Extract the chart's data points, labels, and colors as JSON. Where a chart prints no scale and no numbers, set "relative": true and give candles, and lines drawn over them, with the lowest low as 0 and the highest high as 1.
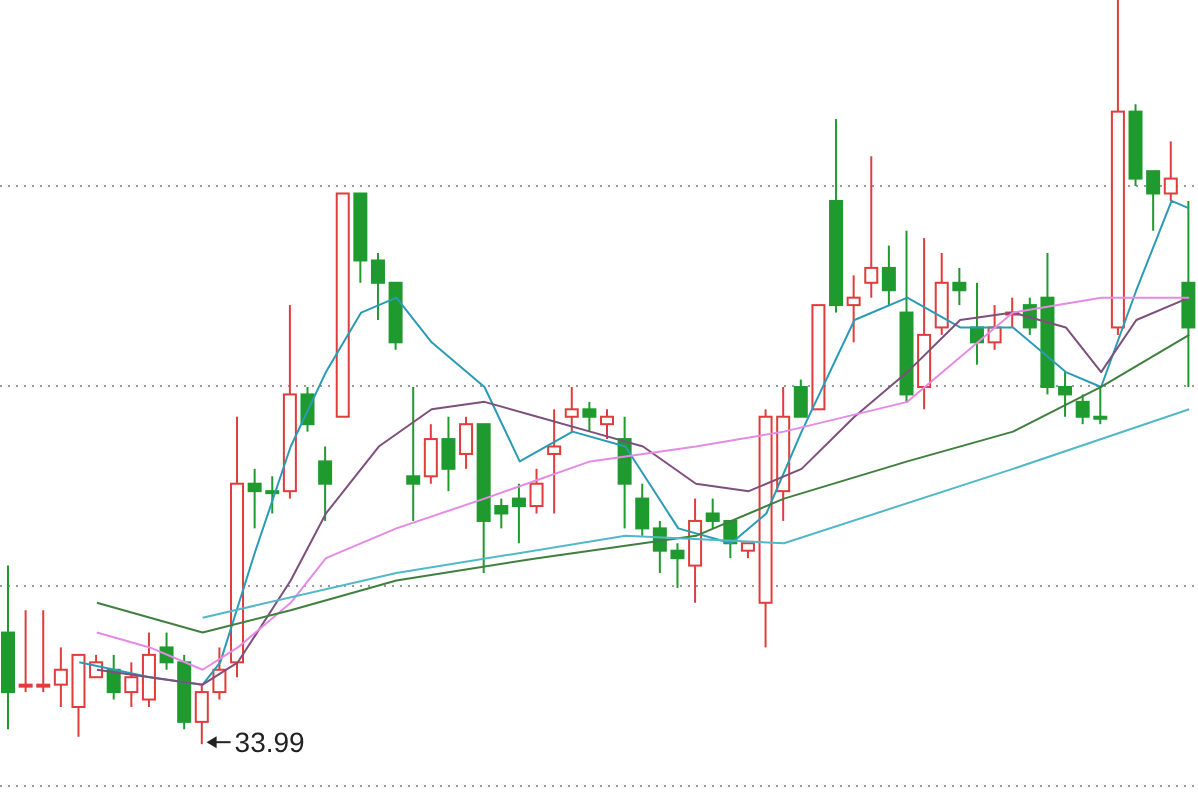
{
  "chart_data": {
    "type": "candlestick",
    "relative": true,
    "grid": "y",
    "tick_labels": false,
    "categories": [
      null,
      null,
      null,
      null,
      null,
      null,
      null,
      null,
      null,
      null,
      null,
      null,
      null,
      null,
      null,
      null,
      null,
      null,
      null,
      null,
      null,
      null,
      null,
      null,
      null,
      null,
      null,
      null,
      null,
      null,
      null,
      null,
      null,
      null,
      null,
      null,
      null,
      null,
      null,
      null,
      null,
      null,
      null,
      null,
      null,
      null,
      null,
      null,
      null,
      null,
      null,
      null,
      null,
      null,
      null,
      null,
      null,
      null,
      null,
      null,
      null,
      null,
      null,
      null,
      null,
      null,
      null,
      null
    ],
    "ohlc": [
      [
        0.15,
        0.24,
        0.02,
        0.07
      ],
      [
        0.08,
        0.18,
        0.07,
        0.08
      ],
      [
        0.08,
        0.18,
        0.07,
        0.08
      ],
      [
        0.08,
        0.13,
        0.05,
        0.1
      ],
      [
        0.05,
        0.12,
        0.01,
        0.12
      ],
      [
        0.09,
        0.12,
        0.09,
        0.11
      ],
      [
        0.1,
        0.12,
        0.06,
        0.07
      ],
      [
        0.07,
        0.11,
        0.05,
        0.09
      ],
      [
        0.06,
        0.15,
        0.05,
        0.12
      ],
      [
        0.13,
        0.15,
        0.1,
        0.11
      ],
      [
        0.11,
        0.12,
        0.02,
        0.03
      ],
      [
        0.03,
        0.08,
        0.0,
        0.07
      ],
      [
        0.07,
        0.13,
        0.06,
        0.1
      ],
      [
        0.11,
        0.44,
        0.09,
        0.35
      ],
      [
        0.35,
        0.37,
        0.29,
        0.34
      ],
      [
        0.34,
        0.36,
        0.31,
        0.34
      ],
      [
        0.34,
        0.59,
        0.33,
        0.47
      ],
      [
        0.47,
        0.48,
        0.42,
        0.43
      ],
      [
        0.38,
        0.4,
        0.3,
        0.35
      ],
      [
        0.44,
        0.74,
        0.44,
        0.74
      ],
      [
        0.74,
        0.74,
        0.62,
        0.65
      ],
      [
        0.65,
        0.66,
        0.57,
        0.62
      ],
      [
        0.62,
        0.62,
        0.53,
        0.54
      ],
      [
        0.36,
        0.48,
        0.3,
        0.35
      ],
      [
        0.36,
        0.43,
        0.35,
        0.41
      ],
      [
        0.41,
        0.44,
        0.34,
        0.37
      ],
      [
        0.39,
        0.44,
        0.37,
        0.43
      ],
      [
        0.43,
        0.43,
        0.23,
        0.3
      ],
      [
        0.32,
        0.33,
        0.29,
        0.31
      ],
      [
        0.33,
        0.35,
        0.27,
        0.32
      ],
      [
        0.32,
        0.37,
        0.31,
        0.35
      ],
      [
        0.39,
        0.45,
        0.31,
        0.4
      ],
      [
        0.44,
        0.48,
        0.42,
        0.45
      ],
      [
        0.45,
        0.46,
        0.42,
        0.44
      ],
      [
        0.43,
        0.45,
        0.41,
        0.44
      ],
      [
        0.41,
        0.44,
        0.29,
        0.35
      ],
      [
        0.33,
        0.35,
        0.28,
        0.29
      ],
      [
        0.29,
        0.3,
        0.23,
        0.26
      ],
      [
        0.26,
        0.27,
        0.21,
        0.25
      ],
      [
        0.24,
        0.33,
        0.19,
        0.3
      ],
      [
        0.31,
        0.33,
        0.29,
        0.3
      ],
      [
        0.3,
        0.3,
        0.25,
        0.27
      ],
      [
        0.26,
        0.27,
        0.25,
        0.27
      ],
      [
        0.19,
        0.45,
        0.13,
        0.44
      ],
      [
        0.34,
        0.48,
        0.3,
        0.44
      ],
      [
        0.48,
        0.49,
        0.44,
        0.44
      ],
      [
        0.45,
        0.59,
        0.45,
        0.59
      ],
      [
        0.73,
        0.84,
        0.58,
        0.59
      ],
      [
        0.59,
        0.63,
        0.54,
        0.6
      ],
      [
        0.62,
        0.79,
        0.6,
        0.64
      ],
      [
        0.64,
        0.67,
        0.59,
        0.61
      ],
      [
        0.58,
        0.69,
        0.46,
        0.47
      ],
      [
        0.48,
        0.68,
        0.45,
        0.55
      ],
      [
        0.56,
        0.66,
        0.55,
        0.62
      ],
      [
        0.62,
        0.64,
        0.59,
        0.61
      ],
      [
        0.56,
        0.62,
        0.51,
        0.54
      ],
      [
        0.54,
        0.59,
        0.53,
        0.56
      ],
      [
        0.58,
        0.6,
        0.56,
        0.58
      ],
      [
        0.59,
        0.6,
        0.55,
        0.56
      ],
      [
        0.6,
        0.66,
        0.47,
        0.48
      ],
      [
        0.48,
        0.5,
        0.44,
        0.47
      ],
      [
        0.46,
        0.47,
        0.43,
        0.44
      ],
      [
        0.44,
        0.48,
        0.43,
        0.44
      ],
      [
        0.56,
        1.0,
        0.55,
        0.85
      ],
      [
        0.85,
        0.86,
        0.75,
        0.76
      ],
      [
        0.77,
        0.77,
        0.69,
        0.74
      ],
      [
        0.74,
        0.81,
        0.73,
        0.76
      ],
      [
        0.62,
        0.73,
        0.48,
        0.56
      ]
    ],
    "colors": [
      "#1f9a2f",
      "#e03c3c",
      "#e03c3c",
      "#e03c3c",
      "#e03c3c",
      "#e03c3c",
      "#1f9a2f",
      "#e03c3c",
      "#e03c3c",
      "#1f9a2f",
      "#1f9a2f",
      "#e03c3c",
      "#e03c3c",
      "#e03c3c",
      "#1f9a2f",
      "#1f9a2f",
      "#e03c3c",
      "#1f9a2f",
      "#1f9a2f",
      "#e03c3c",
      "#1f9a2f",
      "#1f9a2f",
      "#1f9a2f",
      "#1f9a2f",
      "#e03c3c",
      "#1f9a2f",
      "#e03c3c",
      "#1f9a2f",
      "#1f9a2f",
      "#1f9a2f",
      "#e03c3c",
      "#e03c3c",
      "#e03c3c",
      "#1f9a2f",
      "#e03c3c",
      "#1f9a2f",
      "#1f9a2f",
      "#1f9a2f",
      "#1f9a2f",
      "#e03c3c",
      "#1f9a2f",
      "#1f9a2f",
      "#e03c3c",
      "#e03c3c",
      "#e03c3c",
      "#1f9a2f",
      "#e03c3c",
      "#1f9a2f",
      "#e03c3c",
      "#e03c3c",
      "#1f9a2f",
      "#1f9a2f",
      "#e03c3c",
      "#e03c3c",
      "#1f9a2f",
      "#1f9a2f",
      "#e03c3c",
      "#e03c3c",
      "#1f9a2f",
      "#1f9a2f",
      "#1f9a2f",
      "#1f9a2f",
      "#1f9a2f",
      "#e03c3c",
      "#1f9a2f",
      "#1f9a2f",
      "#e03c3c",
      "#1f9a2f"
    ],
    "series": [
      {
        "type": "line",
        "color": "#2a9bb5",
        "values": [
          null,
          null,
          null,
          null,
          0.11,
          null,
          null,
          null,
          0.09,
          null,
          null,
          0.08,
          0.11,
          null,
          0.26,
          null,
          0.4,
          null,
          0.5,
          null,
          0.58,
          null,
          0.6,
          null,
          0.54,
          null,
          null,
          0.48,
          null,
          0.38,
          null,
          null,
          0.42,
          null,
          null,
          0.4,
          null,
          null,
          0.29,
          null,
          null,
          0.27,
          null,
          0.31,
          null,
          0.42,
          null,
          null,
          0.57,
          null,
          null,
          0.6,
          null,
          null,
          0.56,
          null,
          null,
          0.56,
          null,
          null,
          0.5,
          null,
          0.48,
          null,
          0.61,
          null,
          0.73,
          0.72
        ]
      },
      {
        "type": "line",
        "color": "#7d4f7d",
        "values": [
          null,
          null,
          null,
          null,
          null,
          0.1,
          null,
          null,
          0.09,
          null,
          null,
          0.08,
          null,
          0.11,
          null,
          null,
          0.22,
          null,
          0.31,
          null,
          null,
          0.4,
          null,
          null,
          0.45,
          null,
          null,
          0.46,
          null,
          null,
          0.44,
          null,
          null,
          0.42,
          null,
          null,
          0.4,
          null,
          null,
          0.35,
          null,
          null,
          0.34,
          null,
          null,
          0.37,
          null,
          null,
          0.44,
          null,
          null,
          0.5,
          null,
          null,
          0.57,
          null,
          null,
          0.58,
          null,
          null,
          0.56,
          null,
          0.5,
          null,
          0.57,
          null,
          null,
          0.6
        ]
      },
      {
        "type": "line",
        "color": "#e58ae5",
        "values": [
          null,
          null,
          null,
          null,
          null,
          0.15,
          null,
          null,
          0.13,
          null,
          null,
          0.1,
          null,
          0.13,
          null,
          null,
          0.19,
          null,
          0.25,
          null,
          null,
          null,
          0.29,
          null,
          null,
          null,
          null,
          0.33,
          null,
          null,
          null,
          null,
          null,
          0.38,
          null,
          null,
          null,
          null,
          null,
          0.4,
          null,
          null,
          null,
          null,
          0.42,
          null,
          null,
          null,
          null,
          null,
          null,
          0.46,
          null,
          null,
          null,
          null,
          null,
          0.58,
          null,
          null,
          null,
          null,
          0.6,
          null,
          null,
          null,
          null,
          0.6
        ]
      },
      {
        "type": "line",
        "color": "#3f7f3f",
        "values": [
          null,
          null,
          null,
          null,
          null,
          0.19,
          null,
          null,
          null,
          null,
          null,
          0.15,
          null,
          null,
          null,
          null,
          0.18,
          null,
          null,
          null,
          null,
          null,
          0.22,
          null,
          null,
          null,
          null,
          null,
          null,
          null,
          0.25,
          null,
          null,
          null,
          null,
          null,
          null,
          null,
          null,
          0.28,
          null,
          null,
          null,
          null,
          0.33,
          null,
          null,
          null,
          null,
          null,
          null,
          0.38,
          null,
          null,
          null,
          null,
          null,
          0.42,
          null,
          null,
          null,
          null,
          0.48,
          null,
          null,
          null,
          null,
          0.55
        ]
      },
      {
        "type": "line",
        "color": "#52b8c8",
        "values": [
          null,
          null,
          null,
          null,
          null,
          null,
          null,
          null,
          null,
          null,
          null,
          0.17,
          null,
          null,
          null,
          null,
          null,
          null,
          null,
          null,
          null,
          null,
          0.23,
          null,
          null,
          null,
          null,
          null,
          null,
          null,
          null,
          null,
          null,
          null,
          null,
          0.28,
          null,
          null,
          null,
          null,
          null,
          null,
          null,
          null,
          0.27,
          null,
          null,
          null,
          null,
          null,
          null,
          null,
          null,
          null,
          null,
          null,
          null,
          0.37,
          null,
          null,
          null,
          null,
          null,
          null,
          null,
          null,
          null,
          0.45
        ]
      }
    ],
    "annotations": [
      "33.99"
    ]
  }
}
